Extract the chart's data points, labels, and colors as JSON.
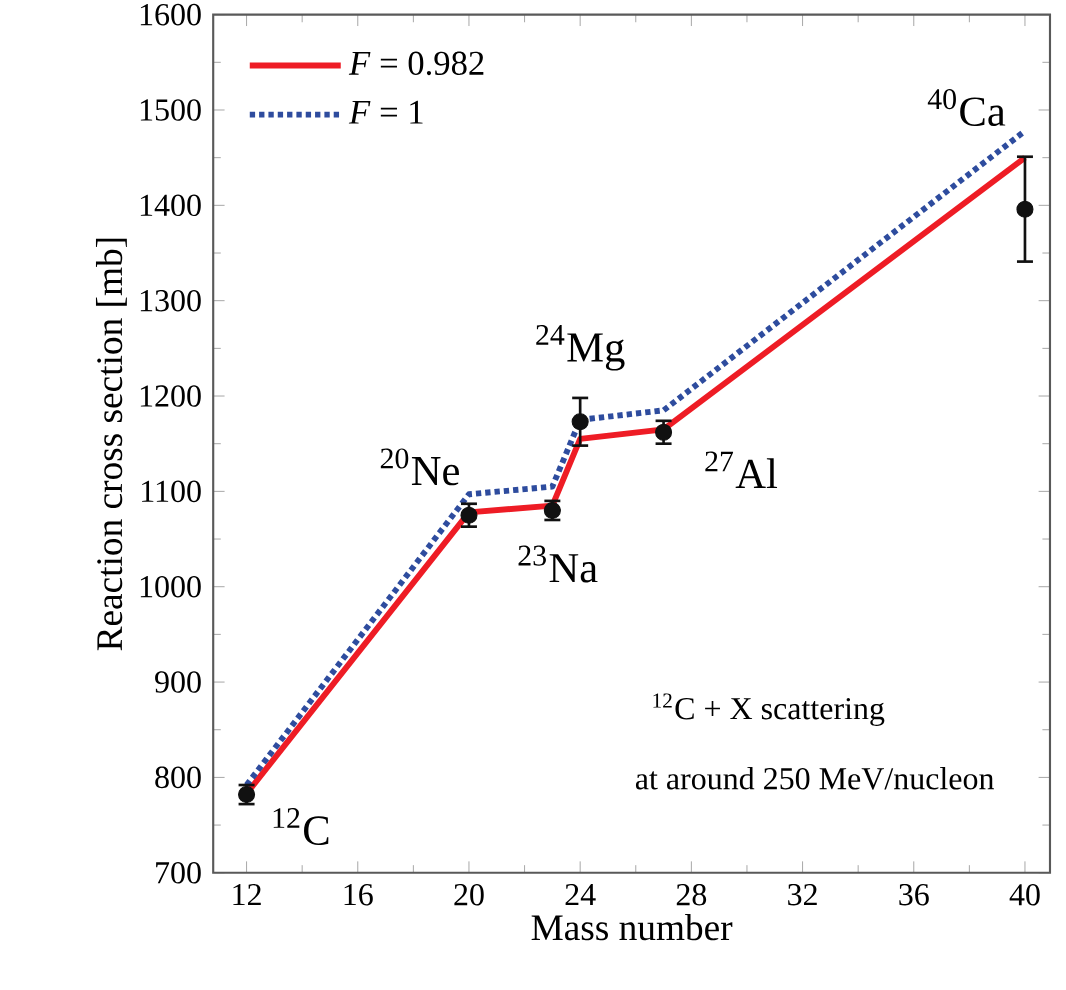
{
  "chart_data": {
    "type": "line",
    "xlabel": "Mass number",
    "ylabel": "Reaction cross section [mb]",
    "xlim": [
      10.8,
      40.9
    ],
    "ylim": [
      700,
      1600
    ],
    "xticks": [
      12,
      16,
      20,
      24,
      28,
      32,
      36,
      40
    ],
    "yticks": [
      700,
      800,
      900,
      1000,
      1100,
      1200,
      1300,
      1400,
      1500,
      1600
    ],
    "grid": false,
    "legend": "top left",
    "series": [
      {
        "name": "*F* = 0.982",
        "color": "#ee1c25",
        "line_style": "solid",
        "x": [
          12,
          20,
          23,
          24,
          27,
          40
        ],
        "values": [
          783,
          1078,
          1085,
          1155,
          1165,
          1450
        ]
      },
      {
        "name": "*F* = 1",
        "color": "#2e4c9e",
        "line_style": "dotted",
        "x": [
          12,
          20,
          23,
          24,
          27,
          40
        ],
        "values": [
          792,
          1097,
          1105,
          1175,
          1185,
          1478
        ]
      },
      {
        "type": "scatter",
        "color": "#111111",
        "marker": "circle",
        "x": [
          12,
          20,
          23,
          24,
          27,
          40
        ],
        "values": [
          782,
          1075,
          1080,
          1173,
          1162,
          1396
        ],
        "errors": [
          10,
          12,
          10,
          25,
          12,
          55
        ]
      }
    ],
    "annotations": [
      {
        "text": "$^{12}$C",
        "x": 12,
        "y": 782
      },
      {
        "text": "$^{20}$Ne",
        "x": 20,
        "y": 1075
      },
      {
        "text": "$^{23}$Na",
        "x": 23,
        "y": 1080
      },
      {
        "text": "$^{24}$Mg",
        "x": 24,
        "y": 1173
      },
      {
        "text": "$^{27}$Al",
        "x": 27,
        "y": 1162
      },
      {
        "text": "$^{40}$Ca",
        "x": 40,
        "y": 1396
      },
      "$^{12}$C + X scattering",
      "at around 250 MeV/nucleon"
    ]
  }
}
